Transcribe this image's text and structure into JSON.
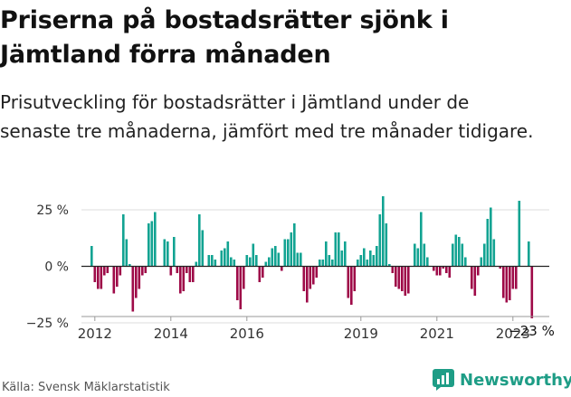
{
  "header": {
    "title": "Priserna på bostadsrätter sjönk i Jämtland förra månaden",
    "subtitle": "Prisutveckling för bostadsrätter i Jämtland under de senaste tre månaderna, jämfört med tre månader tidigare."
  },
  "footer": {
    "source": "Källa: Svensk Mäklarstatistik",
    "brand": "Newsworthy"
  },
  "colors": {
    "positive": "#12a392",
    "negative": "#9e0a48",
    "grid": "#dddddd",
    "brand": "#1e9d86"
  },
  "chart_data": {
    "type": "bar",
    "xlabel": "",
    "ylabel": "",
    "ylim": [
      -27,
      33
    ],
    "y_ticks": [
      25,
      0,
      -25
    ],
    "y_tick_labels": [
      "25 %",
      "0 %",
      "−25 %"
    ],
    "x_tick_labels": [
      "2012",
      "2014",
      "2016",
      "2019",
      "2021",
      "2023"
    ],
    "x_tick_index": [
      3,
      27,
      51,
      87,
      111,
      135
    ],
    "last_label": "−23 %",
    "grid": true,
    "values": [
      0,
      0,
      9,
      -7,
      -10,
      -10,
      -4,
      -3,
      0,
      -12,
      -9,
      -4,
      23,
      12,
      1,
      -20,
      -14,
      -10,
      -4,
      -3,
      19,
      20,
      24,
      0,
      0,
      12,
      11,
      -4,
      13,
      -3,
      -12,
      -11,
      -3,
      -7,
      -7,
      2,
      23,
      16,
      0,
      5,
      5,
      3,
      0,
      7,
      8,
      11,
      4,
      3,
      -15,
      -19,
      -10,
      5,
      4,
      10,
      5,
      -7,
      -5,
      2,
      4,
      8,
      9,
      6,
      -2,
      12,
      12,
      15,
      19,
      6,
      6,
      -11,
      -16,
      -10,
      -8,
      -5,
      3,
      3,
      11,
      5,
      3,
      15,
      15,
      7,
      11,
      -14,
      -17,
      -11,
      3,
      5,
      8,
      3,
      7,
      5,
      9,
      23,
      31,
      19,
      1,
      -3,
      -9,
      -10,
      -11,
      -13,
      -12,
      0,
      10,
      8,
      24,
      10,
      4,
      0,
      -2,
      -4,
      -4,
      -1,
      -3,
      -5,
      10,
      14,
      13,
      10,
      4,
      0,
      -10,
      -13,
      -4,
      4,
      10,
      21,
      26,
      12,
      0,
      -1,
      -14,
      -16,
      -15,
      -10,
      -10,
      29,
      0,
      0,
      11,
      -23
    ]
  }
}
